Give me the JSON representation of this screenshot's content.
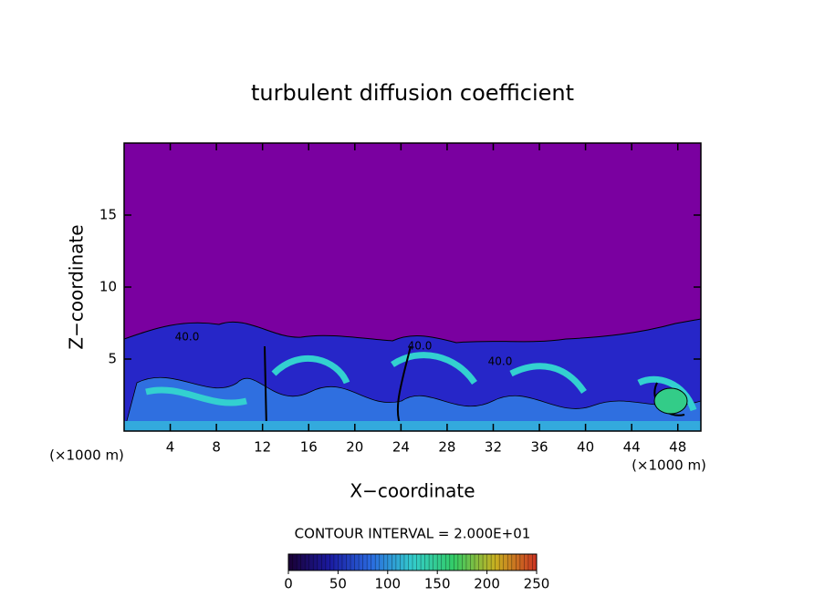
{
  "chart_data": {
    "type": "contour",
    "title": "turbulent diffusion coefficient",
    "xlabel": "X−coordinate",
    "ylabel": "Z−coordinate",
    "xunit": "(×1000 m)",
    "xlim": [
      0,
      50
    ],
    "xticks": [
      4,
      8,
      12,
      16,
      20,
      24,
      28,
      32,
      36,
      40,
      44,
      48
    ],
    "ylim": [
      0,
      20
    ],
    "yticks": [
      5,
      10,
      15
    ],
    "contour_interval": "CONTOUR INTERVAL = 2.000E+01",
    "contour_labels": [
      "40.0",
      "40.0",
      "40.0"
    ],
    "colorbar": {
      "lim": [
        0,
        250
      ],
      "ticks": [
        0,
        50,
        100,
        150,
        200,
        250
      ],
      "colors": [
        "#1a0033",
        "#1a1aa0",
        "#2a6adf",
        "#33cccc",
        "#33cc66",
        "#c8b020",
        "#cc3322"
      ]
    }
  }
}
